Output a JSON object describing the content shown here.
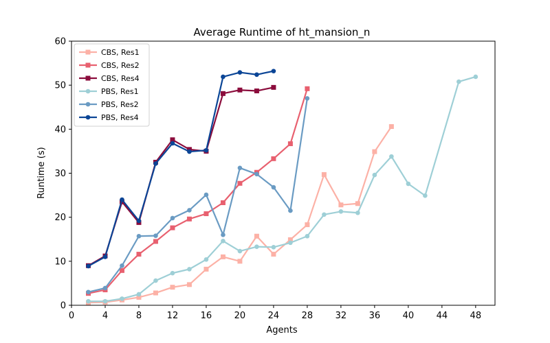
{
  "chart_data": {
    "type": "line",
    "title": "Average Runtime of ht_mansion_n",
    "xlabel": "Agents",
    "ylabel": "Runtime (s)",
    "xlim": [
      0,
      50.3
    ],
    "ylim": [
      0,
      60
    ],
    "xticks": [
      "0",
      "4",
      "8",
      "12",
      "16",
      "20",
      "24",
      "28",
      "32",
      "36",
      "40",
      "44",
      "48"
    ],
    "yticks": [
      "0",
      "10",
      "20",
      "30",
      "40",
      "50",
      "60"
    ],
    "grid": false,
    "legend_position": "top-left",
    "series": [
      {
        "name": "CBS, Res1",
        "color": "#fcb1a6",
        "marker": "square",
        "x": [
          2,
          4,
          6,
          8,
          10,
          12,
          14,
          16,
          18,
          20,
          22,
          24,
          26,
          28,
          30,
          32,
          34,
          36,
          38
        ],
        "y": [
          0.6,
          0.7,
          1.2,
          1.8,
          2.8,
          4.1,
          4.7,
          8.2,
          11.0,
          10.0,
          15.7,
          11.6,
          14.9,
          18.3,
          29.7,
          22.8,
          23.1,
          34.9,
          40.6
        ]
      },
      {
        "name": "CBS, Res2",
        "color": "#e8606f",
        "marker": "square",
        "x": [
          2,
          4,
          6,
          8,
          10,
          12,
          14,
          16,
          18,
          20,
          22,
          24,
          26,
          28
        ],
        "y": [
          2.7,
          3.5,
          7.9,
          11.6,
          14.5,
          17.6,
          19.6,
          20.8,
          23.3,
          27.7,
          30.2,
          33.3,
          36.7,
          49.2
        ]
      },
      {
        "name": "CBS, Res4",
        "color": "#8b0c3c",
        "marker": "square",
        "x": [
          2,
          4,
          6,
          8,
          10,
          12,
          14,
          16,
          18,
          20,
          22,
          24
        ],
        "y": [
          9.0,
          11.2,
          23.5,
          18.8,
          32.5,
          37.6,
          35.4,
          35.0,
          48.1,
          48.9,
          48.7,
          49.5
        ]
      },
      {
        "name": "PBS, Res1",
        "color": "#9ecfd6",
        "marker": "circle",
        "x": [
          2,
          4,
          6,
          8,
          10,
          12,
          14,
          16,
          18,
          20,
          22,
          24,
          26,
          28,
          30,
          32,
          34,
          36,
          38,
          40,
          42,
          46,
          48
        ],
        "y": [
          0.9,
          0.9,
          1.5,
          2.5,
          5.6,
          7.3,
          8.2,
          10.4,
          14.6,
          12.3,
          13.3,
          13.2,
          14.2,
          15.7,
          20.6,
          21.3,
          21.0,
          29.6,
          33.8,
          27.6,
          24.9,
          50.8,
          51.9
        ]
      },
      {
        "name": "PBS, Res2",
        "color": "#6a9bc3",
        "marker": "circle",
        "x": [
          2,
          4,
          6,
          8,
          10,
          12,
          14,
          16,
          18,
          20,
          22,
          24,
          26,
          28
        ],
        "y": [
          3.0,
          3.9,
          9.0,
          15.7,
          15.8,
          19.8,
          21.6,
          25.1,
          16.0,
          31.2,
          29.8,
          26.8,
          21.5,
          47.0
        ]
      },
      {
        "name": "PBS, Res4",
        "color": "#0b4596",
        "marker": "circle",
        "x": [
          2,
          4,
          6,
          8,
          10,
          12,
          14,
          16,
          18,
          20,
          22,
          24
        ],
        "y": [
          8.9,
          11.0,
          24.0,
          19.2,
          32.2,
          36.8,
          34.9,
          35.2,
          51.9,
          52.9,
          52.4,
          53.2
        ]
      }
    ]
  }
}
